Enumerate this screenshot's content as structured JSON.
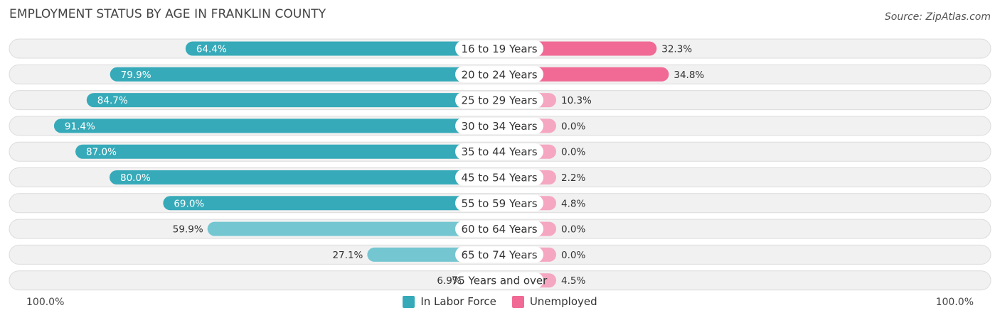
{
  "header": {
    "title": "EMPLOYMENT STATUS BY AGE IN FRANKLIN COUNTY",
    "source": "Source: ZipAtlas.com"
  },
  "colors": {
    "labor_strong": "#36aab9",
    "labor_light": "#74c6d1",
    "unemp_strong": "#f06a95",
    "unemp_light": "#f5a6c1"
  },
  "axis": {
    "left_label": "100.0%",
    "right_label": "100.0%"
  },
  "legend": {
    "labor": "In Labor Force",
    "unemployed": "Unemployed"
  },
  "chart_data": {
    "type": "bar",
    "title": "EMPLOYMENT STATUS BY AGE IN FRANKLIN COUNTY",
    "orientation": "horizontal-diverging",
    "categories": [
      "16 to 19 Years",
      "20 to 24 Years",
      "25 to 29 Years",
      "30 to 34 Years",
      "35 to 44 Years",
      "45 to 54 Years",
      "55 to 59 Years",
      "60 to 64 Years",
      "65 to 74 Years",
      "75 Years and over"
    ],
    "series": [
      {
        "name": "In Labor Force",
        "values": [
          64.4,
          79.9,
          84.7,
          91.4,
          87.0,
          80.0,
          69.0,
          59.9,
          27.1,
          6.9
        ],
        "labels": [
          "64.4%",
          "79.9%",
          "84.7%",
          "91.4%",
          "87.0%",
          "80.0%",
          "69.0%",
          "59.9%",
          "27.1%",
          "6.9%"
        ]
      },
      {
        "name": "Unemployed",
        "values": [
          32.3,
          34.8,
          10.3,
          0.0,
          0.0,
          2.2,
          4.8,
          0.0,
          0.0,
          4.5
        ],
        "labels": [
          "32.3%",
          "34.8%",
          "10.3%",
          "0.0%",
          "0.0%",
          "2.2%",
          "4.8%",
          "0.0%",
          "0.0%",
          "4.5%"
        ]
      }
    ],
    "xlim": [
      -100,
      100
    ],
    "legend_position": "bottom-center"
  }
}
